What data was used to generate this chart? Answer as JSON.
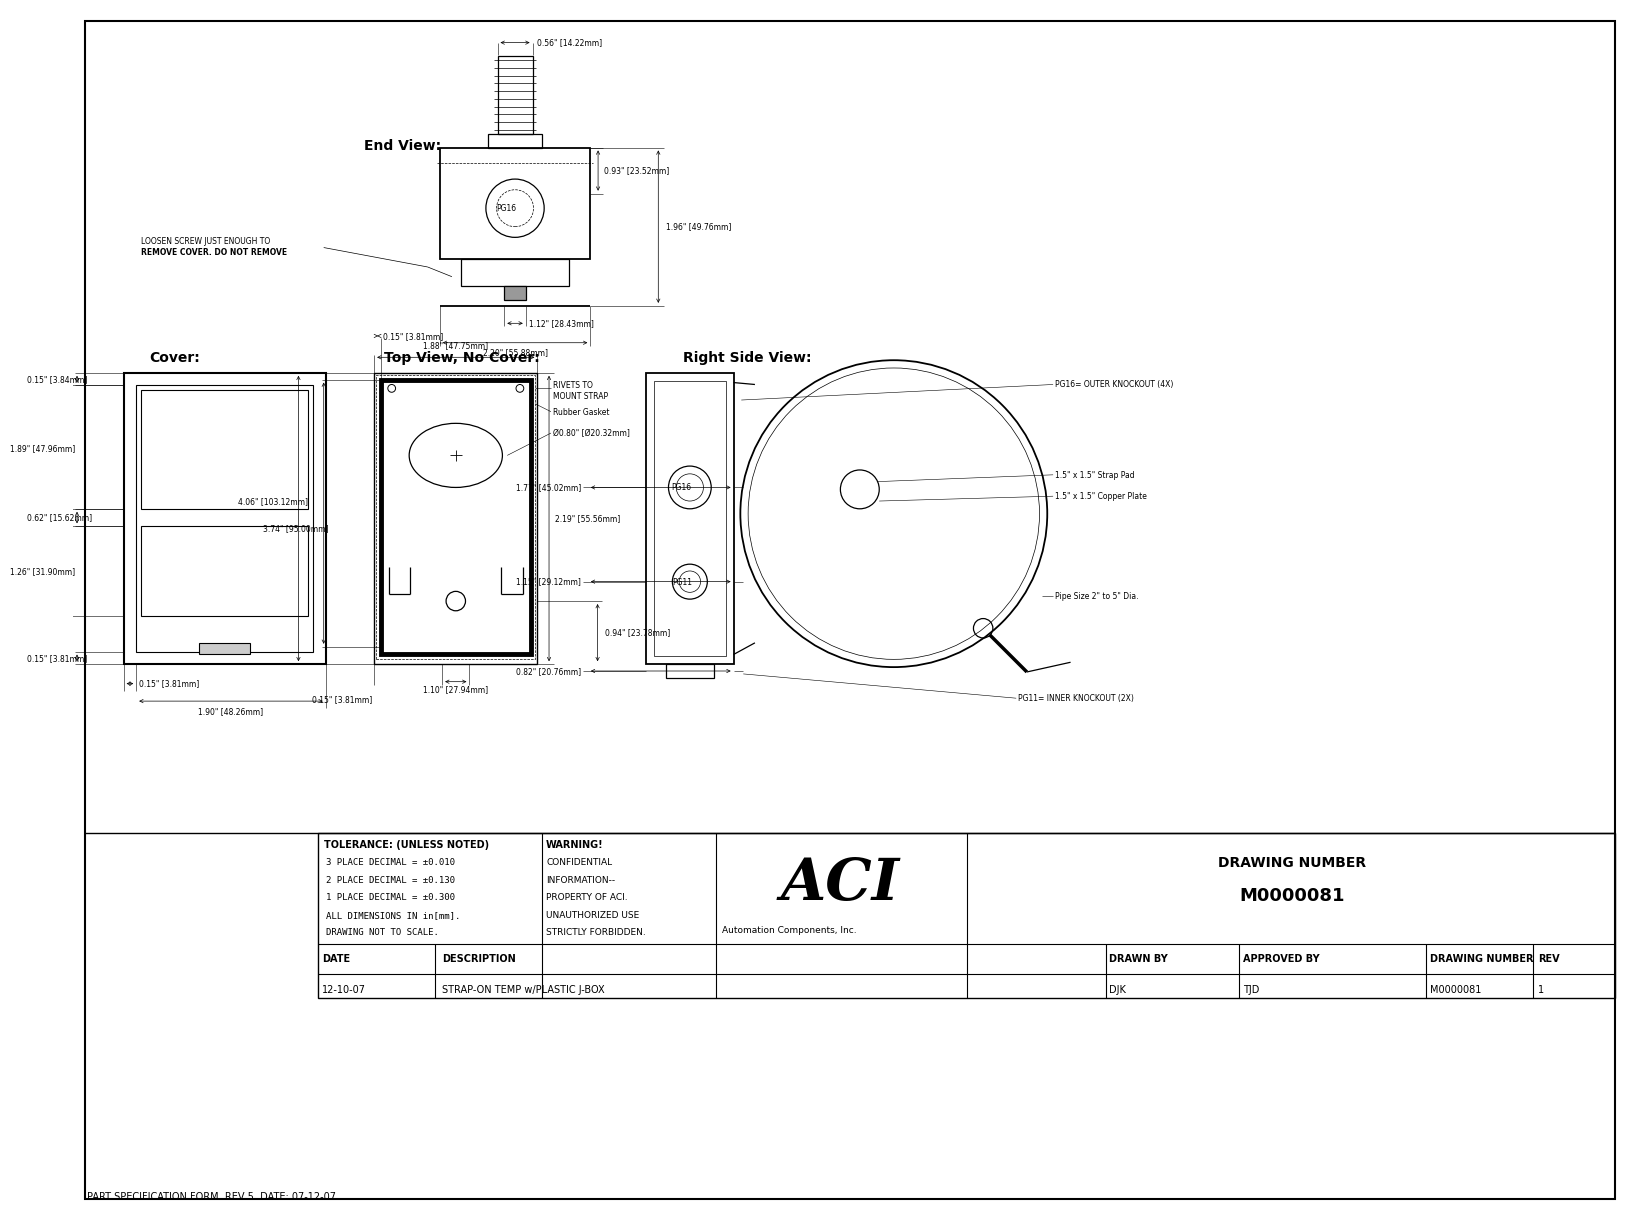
{
  "bg": "#ffffff",
  "footer": "PART SPECIFICATION FORM  REV 5  DATE: 07-12-07",
  "drawing_number": "M0000081",
  "drawn_by": "DJK",
  "approved_by": "TJD",
  "date_str": "12-10-07",
  "description": "STRAP-ON TEMP w/PLASTIC J-BOX",
  "rev": "1",
  "tolerance_lines": [
    "TOLERANCE: (UNLESS NOTED)",
    "3 PLACE DECIMAL = ±0.010",
    "2 PLACE DECIMAL = ±0.130",
    "1 PLACE DECIMAL = ±0.300",
    "ALL DIMENSIONS IN in[mm].",
    "DRAWING NOT TO SCALE."
  ],
  "warning_lines": [
    "WARNING!",
    "CONFIDENTIAL",
    "INFORMATION--",
    "PROPERTY OF ACI.",
    "UNAUTHORIZED USE",
    "STRICTLY FORBIDDEN."
  ],
  "end_view_label": "End View:",
  "cover_label": "Cover:",
  "top_view_label": "Top View, No Cover:",
  "right_side_label": "Right Side View:",
  "loosen_line1": "LOOSEN SCREW JUST ENOUGH TO",
  "loosen_line2": "REMOVE COVER. DO NOT REMOVE",
  "rivets_line1": "RIVETS TO",
  "rivets_line2": "MOUNT STRAP",
  "rubber_gasket": "Rubber Gasket",
  "pg16_outer": "PG16= OUTER KNOCKOUT (4X)",
  "pg11_inner": "PG11= INNER KNOCKOUT (2X)",
  "strap_pad": "1.5\" x 1.5\" Strap Pad",
  "copper_plate": "1.5\" x 1.5\" Copper Plate",
  "pipe_size": "Pipe Size 2\" to 5\" Dia.",
  "dim_056": "0.56\" [14.22mm]",
  "dim_093": "0.93\" [23.52mm]",
  "dim_196": "1.96\" [49.76mm]",
  "dim_112": "1.12\" [28.43mm]",
  "dim_220": "2.20\" [55.88mm]",
  "dim_188": "1.88\" [47.75mm]",
  "dim_015_384": "0.15\" [3.84mm]",
  "dim_015_381": "0.15\" [3.81mm]",
  "dim_189": "1.89\" [47.96mm]",
  "dim_062": "0.62\" [15.62mm]",
  "dim_126": "1.26\" [31.90mm]",
  "dim_190": "1.90\" [48.26mm]",
  "dim_406": "4.06\" [103.12mm]",
  "dim_374": "3.74\" [95.00mm]",
  "dim_219": "2.19\" [55.56mm]",
  "dim_094": "0.94\" [23.78mm]",
  "dim_110": "1.10\" [27.94mm]",
  "dim_080": "Ø0.80\" [Ø20.32mm]",
  "dim_177": "1.77\" [45.02mm]",
  "dim_115": "1.15\" [29.12mm]",
  "dim_082": "0.82\" [20.76mm]"
}
